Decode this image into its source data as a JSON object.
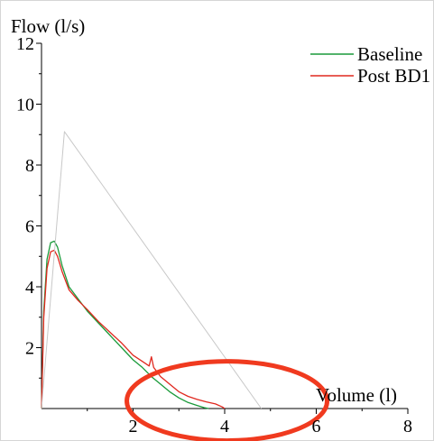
{
  "chart_data": {
    "type": "line",
    "ylabel": "Flow (l/s)",
    "xlabel": "Volume (l)",
    "xlim": [
      0,
      8
    ],
    "ylim": [
      0,
      12
    ],
    "x_ticks": [
      "2",
      "4",
      "6",
      "8"
    ],
    "y_ticks": [
      "2",
      "4",
      "6",
      "8",
      "10",
      "12"
    ],
    "legend_position": "top-right",
    "grid": false,
    "series": [
      {
        "name": "Baseline",
        "color": "#1a9a3a",
        "x": [
          0,
          0.05,
          0.12,
          0.2,
          0.28,
          0.35,
          0.45,
          0.6,
          0.8,
          1.0,
          1.25,
          1.5,
          1.75,
          2.0,
          2.2,
          2.4,
          2.6,
          2.8,
          3.0,
          3.2,
          3.4,
          3.55,
          3.65
        ],
        "y": [
          0,
          3.2,
          4.9,
          5.45,
          5.5,
          5.3,
          4.7,
          4.0,
          3.6,
          3.2,
          2.8,
          2.4,
          2.0,
          1.6,
          1.35,
          1.05,
          0.8,
          0.55,
          0.35,
          0.2,
          0.1,
          0.03,
          0.0
        ]
      },
      {
        "name": "Post BD1",
        "color": "#e0281f",
        "x": [
          0,
          0.05,
          0.12,
          0.2,
          0.28,
          0.35,
          0.45,
          0.6,
          0.8,
          1.0,
          1.25,
          1.5,
          1.75,
          2.0,
          2.2,
          2.35,
          2.4,
          2.45,
          2.6,
          2.8,
          3.0,
          3.2,
          3.4,
          3.6,
          3.8,
          3.95,
          4.0
        ],
        "y": [
          0,
          3.0,
          4.6,
          5.15,
          5.2,
          5.0,
          4.5,
          3.9,
          3.55,
          3.25,
          2.85,
          2.5,
          2.15,
          1.75,
          1.55,
          1.4,
          1.7,
          1.35,
          1.05,
          0.8,
          0.55,
          0.4,
          0.3,
          0.22,
          0.15,
          0.05,
          0.0
        ]
      },
      {
        "name": "",
        "color": "#c8c8c8",
        "x": [
          0,
          0.5,
          4.8
        ],
        "y": [
          0,
          9.1,
          0
        ]
      }
    ],
    "annotations": [
      {
        "type": "ellipse",
        "color": "#f03a1f",
        "center_x": 4.05,
        "center_y": 0.25
      }
    ]
  }
}
